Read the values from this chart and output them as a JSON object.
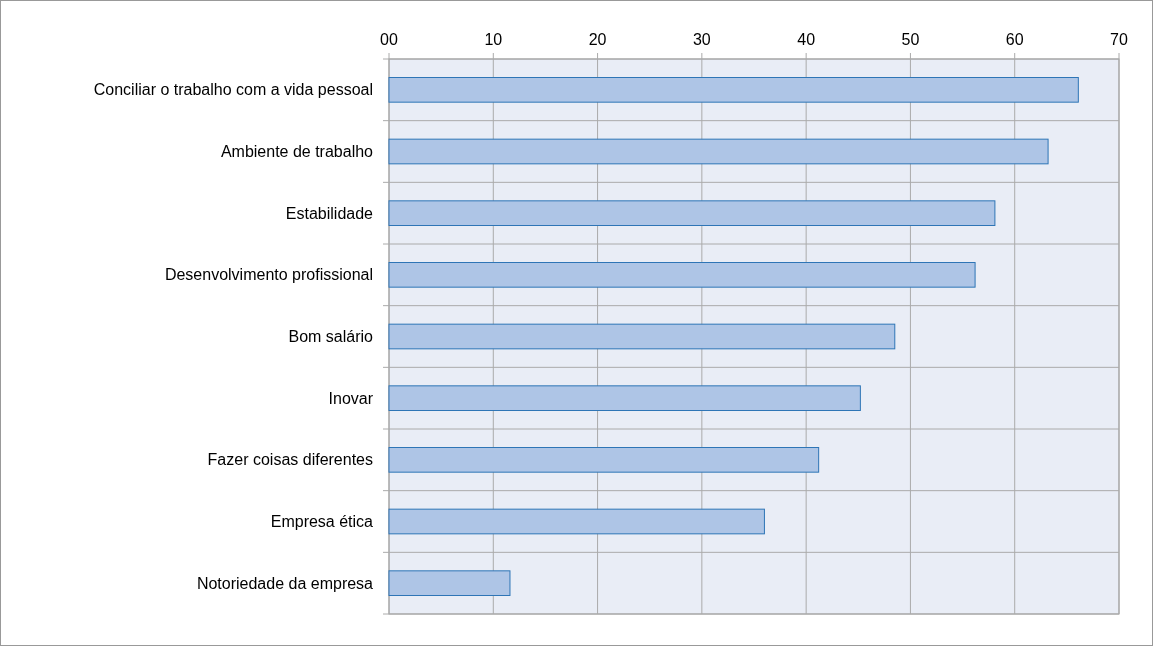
{
  "chart_data": {
    "type": "bar",
    "orientation": "horizontal",
    "categories": [
      "Conciliar o trabalho com a vida pessoal",
      "Ambiente de trabalho",
      "Estabilidade",
      "Desenvolvimento profissional",
      "Bom salário",
      "Inovar",
      "Fazer coisas diferentes",
      "Empresa ética",
      "Notoriedade da empresa"
    ],
    "values": [
      66.1,
      63.2,
      58.1,
      56.2,
      48.5,
      45.2,
      41.2,
      36.0,
      11.6
    ],
    "color": "#aec5e6",
    "xlim": [
      0,
      70
    ],
    "xticks": [
      {
        "value": 0,
        "label": "00"
      },
      10,
      20,
      30,
      40,
      50,
      60,
      70
    ],
    "grid": true
  }
}
